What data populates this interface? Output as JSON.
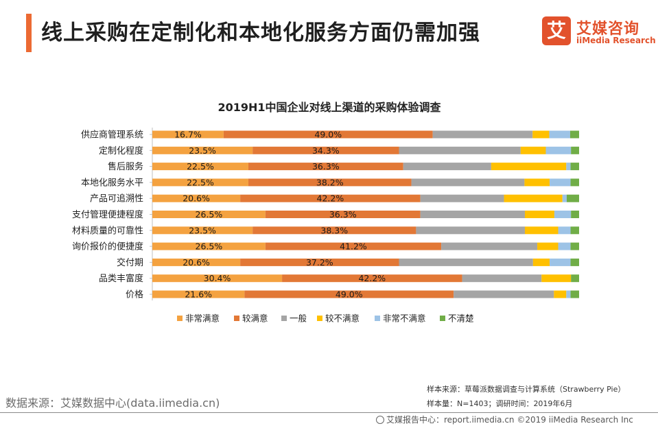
{
  "page": {
    "title": "线上采购在定制化和本地化服务方面仍需加强",
    "logo_mark": "艾",
    "logo_cn": "艾媒咨询",
    "logo_en": "iiMedia Research",
    "source_left": "数据来源：艾媒数据中心(data.iimedia.cn)",
    "sample_source": "样本来源：草莓派数据调查与计算系统（Strawberry Pie）",
    "sample_size": "样本量：N=1403；调研时间：2019年6月",
    "footer_right": "艾媒报告中心：report.iimedia.cn  ©2019  iiMedia Research Inc",
    "brand_color": "#e2522c"
  },
  "chart_data": {
    "type": "bar",
    "orientation": "horizontal",
    "stacked": true,
    "percent": true,
    "title": "2019H1中国企业对线上渠道的采购体验调查",
    "xlabel": "",
    "ylabel": "",
    "xlim": [
      0,
      100
    ],
    "grid": false,
    "legend_position": "bottom",
    "categories": [
      "供应商管理系统",
      "定制化程度",
      "售后服务",
      "本地化服务水平",
      "产品可追溯性",
      "支付管理便捷程度",
      "材料质量的可靠性",
      "询价报价的便捷度",
      "交付期",
      "品类丰富度",
      "价格"
    ],
    "series": [
      {
        "name": "非常满意",
        "color": "#f4a240",
        "values": [
          16.7,
          23.5,
          22.5,
          22.5,
          20.6,
          26.5,
          23.5,
          26.5,
          20.6,
          30.4,
          21.6
        ],
        "labels": [
          "16.7%",
          "23.5%",
          "22.5%",
          "22.5%",
          "20.6%",
          "26.5%",
          "23.5%",
          "26.5%",
          "20.6%",
          "30.4%",
          "21.6%"
        ]
      },
      {
        "name": "较满意",
        "color": "#e27836",
        "values": [
          49.0,
          34.3,
          36.3,
          38.2,
          42.2,
          36.3,
          38.3,
          41.2,
          37.2,
          42.2,
          49.0
        ],
        "labels": [
          "49.0%",
          "34.3%",
          "36.3%",
          "38.2%",
          "42.2%",
          "36.3%",
          "38.3%",
          "41.2%",
          "37.2%",
          "42.2%",
          "49.0%"
        ]
      },
      {
        "name": "一般",
        "color": "#a5a5a5",
        "values": [
          23.4,
          28.5,
          20.6,
          26.5,
          19.6,
          24.5,
          25.5,
          22.5,
          31.4,
          18.6,
          23.5
        ]
      },
      {
        "name": "较不满意",
        "color": "#ffc000",
        "values": [
          3.9,
          5.9,
          17.6,
          5.9,
          13.7,
          6.9,
          7.8,
          4.9,
          3.9,
          6.9,
          2.9
        ]
      },
      {
        "name": "非常不满意",
        "color": "#9dc3e6",
        "values": [
          4.9,
          5.9,
          1.0,
          4.9,
          1.0,
          3.9,
          2.9,
          2.9,
          4.9,
          0.0,
          1.0
        ]
      },
      {
        "name": "不清楚",
        "color": "#70ad47",
        "values": [
          2.1,
          1.9,
          2.0,
          2.0,
          2.9,
          1.9,
          2.0,
          2.0,
          2.0,
          1.9,
          2.0
        ]
      }
    ]
  }
}
